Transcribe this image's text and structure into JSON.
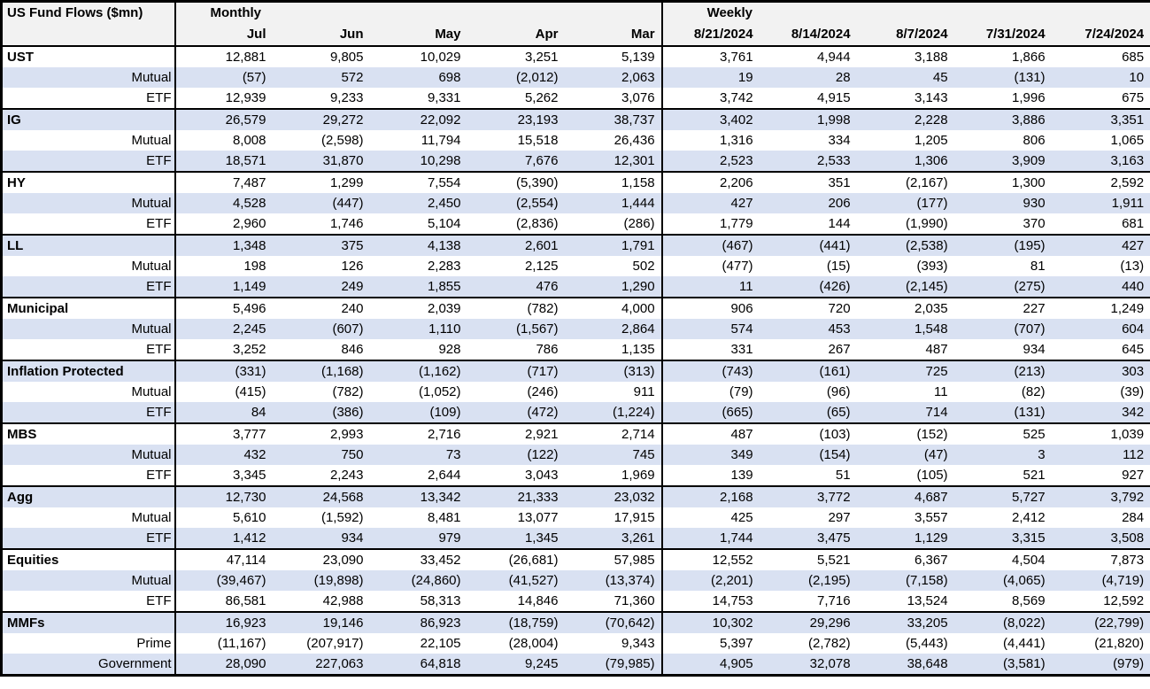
{
  "header": {
    "title": "US Fund Flows ($mn)",
    "monthly_label": "Monthly",
    "weekly_label": "Weekly",
    "monthly_columns": [
      "Jul",
      "Jun",
      "May",
      "Apr",
      "Mar"
    ],
    "weekly_columns": [
      "8/21/2024",
      "8/14/2024",
      "8/7/2024",
      "7/31/2024",
      "7/24/2024"
    ]
  },
  "colors": {
    "stripe": "#D9E1F2",
    "header_bg": "#F2F2F2",
    "border": "#000000"
  },
  "groups": [
    {
      "name": "UST",
      "rows": [
        {
          "label": "UST",
          "type": "category",
          "monthly": [
            "12,881",
            "9,805",
            "10,029",
            "3,251",
            "5,139"
          ],
          "weekly": [
            "3,761",
            "4,944",
            "3,188",
            "1,866",
            "685"
          ]
        },
        {
          "label": "Mutual",
          "type": "sub",
          "monthly": [
            "(57)",
            "572",
            "698",
            "(2,012)",
            "2,063"
          ],
          "weekly": [
            "19",
            "28",
            "45",
            "(131)",
            "10"
          ]
        },
        {
          "label": "ETF",
          "type": "sub",
          "monthly": [
            "12,939",
            "9,233",
            "9,331",
            "5,262",
            "3,076"
          ],
          "weekly": [
            "3,742",
            "4,915",
            "3,143",
            "1,996",
            "675"
          ]
        }
      ]
    },
    {
      "name": "IG",
      "rows": [
        {
          "label": "IG",
          "type": "category",
          "monthly": [
            "26,579",
            "29,272",
            "22,092",
            "23,193",
            "38,737"
          ],
          "weekly": [
            "3,402",
            "1,998",
            "2,228",
            "3,886",
            "3,351"
          ]
        },
        {
          "label": "Mutual",
          "type": "sub",
          "monthly": [
            "8,008",
            "(2,598)",
            "11,794",
            "15,518",
            "26,436"
          ],
          "weekly": [
            "1,316",
            "334",
            "1,205",
            "806",
            "1,065"
          ]
        },
        {
          "label": "ETF",
          "type": "sub",
          "monthly": [
            "18,571",
            "31,870",
            "10,298",
            "7,676",
            "12,301"
          ],
          "weekly": [
            "2,523",
            "2,533",
            "1,306",
            "3,909",
            "3,163"
          ]
        }
      ]
    },
    {
      "name": "HY",
      "rows": [
        {
          "label": "HY",
          "type": "category",
          "monthly": [
            "7,487",
            "1,299",
            "7,554",
            "(5,390)",
            "1,158"
          ],
          "weekly": [
            "2,206",
            "351",
            "(2,167)",
            "1,300",
            "2,592"
          ]
        },
        {
          "label": "Mutual",
          "type": "sub",
          "monthly": [
            "4,528",
            "(447)",
            "2,450",
            "(2,554)",
            "1,444"
          ],
          "weekly": [
            "427",
            "206",
            "(177)",
            "930",
            "1,911"
          ]
        },
        {
          "label": "ETF",
          "type": "sub",
          "monthly": [
            "2,960",
            "1,746",
            "5,104",
            "(2,836)",
            "(286)"
          ],
          "weekly": [
            "1,779",
            "144",
            "(1,990)",
            "370",
            "681"
          ]
        }
      ]
    },
    {
      "name": "LL",
      "rows": [
        {
          "label": "LL",
          "type": "category",
          "monthly": [
            "1,348",
            "375",
            "4,138",
            "2,601",
            "1,791"
          ],
          "weekly": [
            "(467)",
            "(441)",
            "(2,538)",
            "(195)",
            "427"
          ]
        },
        {
          "label": "Mutual",
          "type": "sub",
          "monthly": [
            "198",
            "126",
            "2,283",
            "2,125",
            "502"
          ],
          "weekly": [
            "(477)",
            "(15)",
            "(393)",
            "81",
            "(13)"
          ]
        },
        {
          "label": "ETF",
          "type": "sub",
          "monthly": [
            "1,149",
            "249",
            "1,855",
            "476",
            "1,290"
          ],
          "weekly": [
            "11",
            "(426)",
            "(2,145)",
            "(275)",
            "440"
          ]
        }
      ]
    },
    {
      "name": "Municipal",
      "rows": [
        {
          "label": "Municipal",
          "type": "category",
          "monthly": [
            "5,496",
            "240",
            "2,039",
            "(782)",
            "4,000"
          ],
          "weekly": [
            "906",
            "720",
            "2,035",
            "227",
            "1,249"
          ]
        },
        {
          "label": "Mutual",
          "type": "sub",
          "monthly": [
            "2,245",
            "(607)",
            "1,110",
            "(1,567)",
            "2,864"
          ],
          "weekly": [
            "574",
            "453",
            "1,548",
            "(707)",
            "604"
          ]
        },
        {
          "label": "ETF",
          "type": "sub",
          "monthly": [
            "3,252",
            "846",
            "928",
            "786",
            "1,135"
          ],
          "weekly": [
            "331",
            "267",
            "487",
            "934",
            "645"
          ]
        }
      ]
    },
    {
      "name": "Inflation Protected",
      "rows": [
        {
          "label": "Inflation Protected",
          "type": "category",
          "monthly": [
            "(331)",
            "(1,168)",
            "(1,162)",
            "(717)",
            "(313)"
          ],
          "weekly": [
            "(743)",
            "(161)",
            "725",
            "(213)",
            "303"
          ]
        },
        {
          "label": "Mutual",
          "type": "sub",
          "monthly": [
            "(415)",
            "(782)",
            "(1,052)",
            "(246)",
            "911"
          ],
          "weekly": [
            "(79)",
            "(96)",
            "11",
            "(82)",
            "(39)"
          ]
        },
        {
          "label": "ETF",
          "type": "sub",
          "monthly": [
            "84",
            "(386)",
            "(109)",
            "(472)",
            "(1,224)"
          ],
          "weekly": [
            "(665)",
            "(65)",
            "714",
            "(131)",
            "342"
          ]
        }
      ]
    },
    {
      "name": "MBS",
      "rows": [
        {
          "label": "MBS",
          "type": "category",
          "monthly": [
            "3,777",
            "2,993",
            "2,716",
            "2,921",
            "2,714"
          ],
          "weekly": [
            "487",
            "(103)",
            "(152)",
            "525",
            "1,039"
          ]
        },
        {
          "label": "Mutual",
          "type": "sub",
          "monthly": [
            "432",
            "750",
            "73",
            "(122)",
            "745"
          ],
          "weekly": [
            "349",
            "(154)",
            "(47)",
            "3",
            "112"
          ]
        },
        {
          "label": "ETF",
          "type": "sub",
          "monthly": [
            "3,345",
            "2,243",
            "2,644",
            "3,043",
            "1,969"
          ],
          "weekly": [
            "139",
            "51",
            "(105)",
            "521",
            "927"
          ]
        }
      ]
    },
    {
      "name": "Agg",
      "rows": [
        {
          "label": "Agg",
          "type": "category",
          "monthly": [
            "12,730",
            "24,568",
            "13,342",
            "21,333",
            "23,032"
          ],
          "weekly": [
            "2,168",
            "3,772",
            "4,687",
            "5,727",
            "3,792"
          ]
        },
        {
          "label": "Mutual",
          "type": "sub",
          "monthly": [
            "5,610",
            "(1,592)",
            "8,481",
            "13,077",
            "17,915"
          ],
          "weekly": [
            "425",
            "297",
            "3,557",
            "2,412",
            "284"
          ]
        },
        {
          "label": "ETF",
          "type": "sub",
          "monthly": [
            "1,412",
            "934",
            "979",
            "1,345",
            "3,261"
          ],
          "weekly": [
            "1,744",
            "3,475",
            "1,129",
            "3,315",
            "3,508"
          ]
        }
      ]
    },
    {
      "name": "Equities",
      "rows": [
        {
          "label": "Equities",
          "type": "category",
          "monthly": [
            "47,114",
            "23,090",
            "33,452",
            "(26,681)",
            "57,985"
          ],
          "weekly": [
            "12,552",
            "5,521",
            "6,367",
            "4,504",
            "7,873"
          ]
        },
        {
          "label": "Mutual",
          "type": "sub",
          "monthly": [
            "(39,467)",
            "(19,898)",
            "(24,860)",
            "(41,527)",
            "(13,374)"
          ],
          "weekly": [
            "(2,201)",
            "(2,195)",
            "(7,158)",
            "(4,065)",
            "(4,719)"
          ]
        },
        {
          "label": "ETF",
          "type": "sub",
          "monthly": [
            "86,581",
            "42,988",
            "58,313",
            "14,846",
            "71,360"
          ],
          "weekly": [
            "14,753",
            "7,716",
            "13,524",
            "8,569",
            "12,592"
          ]
        }
      ]
    },
    {
      "name": "MMFs",
      "rows": [
        {
          "label": "MMFs",
          "type": "category",
          "monthly": [
            "16,923",
            "19,146",
            "86,923",
            "(18,759)",
            "(70,642)"
          ],
          "weekly": [
            "10,302",
            "29,296",
            "33,205",
            "(8,022)",
            "(22,799)"
          ]
        },
        {
          "label": "Prime",
          "type": "sub",
          "monthly": [
            "(11,167)",
            "(207,917)",
            "22,105",
            "(28,004)",
            "9,343"
          ],
          "weekly": [
            "5,397",
            "(2,782)",
            "(5,443)",
            "(4,441)",
            "(21,820)"
          ]
        },
        {
          "label": "Government",
          "type": "sub",
          "monthly": [
            "28,090",
            "227,063",
            "64,818",
            "9,245",
            "(79,985)"
          ],
          "weekly": [
            "4,905",
            "32,078",
            "38,648",
            "(3,581)",
            "(979)"
          ]
        }
      ]
    }
  ]
}
